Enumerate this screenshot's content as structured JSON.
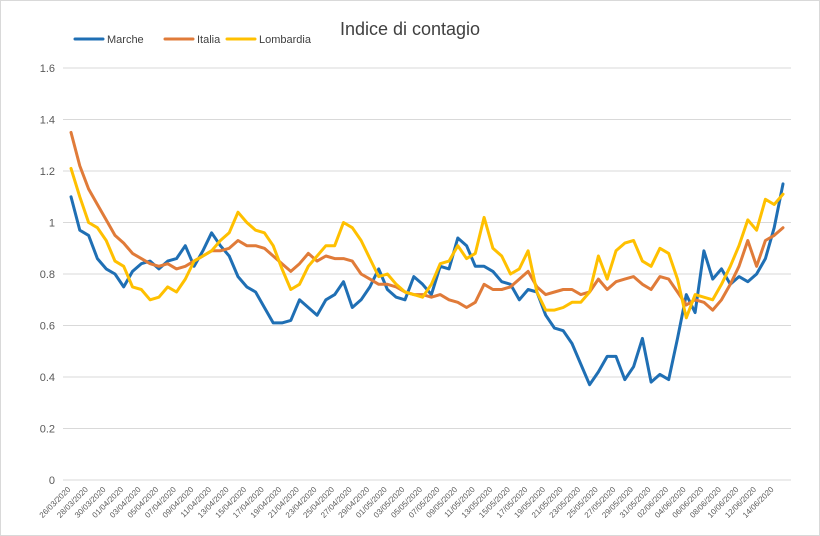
{
  "chart_data": {
    "type": "line",
    "title": "Indice di contagio",
    "xlabel": "",
    "ylabel": "",
    "ylim": [
      0,
      1.6
    ],
    "yticks": [
      "0",
      "0.2",
      "0.4",
      "0.6",
      "0.8",
      "1",
      "1.2",
      "1.4",
      "1.6"
    ],
    "grid": true,
    "legend_position": "top-left",
    "categories": [
      "26/03/2020",
      "27/03/2020",
      "28/03/2020",
      "29/03/2020",
      "30/03/2020",
      "31/03/2020",
      "01/04/2020",
      "02/04/2020",
      "03/04/2020",
      "04/04/2020",
      "05/04/2020",
      "06/04/2020",
      "07/04/2020",
      "08/04/2020",
      "09/04/2020",
      "10/04/2020",
      "11/04/2020",
      "12/04/2020",
      "13/04/2020",
      "14/04/2020",
      "15/04/2020",
      "16/04/2020",
      "17/04/2020",
      "18/04/2020",
      "19/04/2020",
      "20/04/2020",
      "21/04/2020",
      "22/04/2020",
      "23/04/2020",
      "24/04/2020",
      "25/04/2020",
      "26/04/2020",
      "27/04/2020",
      "28/04/2020",
      "29/04/2020",
      "30/04/2020",
      "01/05/2020",
      "02/05/2020",
      "03/05/2020",
      "04/05/2020",
      "05/05/2020",
      "06/05/2020",
      "07/05/2020",
      "08/05/2020",
      "09/05/2020",
      "10/05/2020",
      "11/05/2020",
      "12/05/2020",
      "13/05/2020",
      "14/05/2020",
      "15/05/2020",
      "16/05/2020",
      "17/05/2020",
      "18/05/2020",
      "19/05/2020",
      "20/05/2020",
      "21/05/2020",
      "22/05/2020",
      "23/05/2020",
      "24/05/2020",
      "25/05/2020",
      "26/05/2020",
      "27/05/2020",
      "28/05/2020",
      "29/05/2020",
      "30/05/2020",
      "31/05/2020",
      "01/06/2020",
      "02/06/2020",
      "03/06/2020",
      "04/06/2020",
      "05/06/2020",
      "06/06/2020",
      "07/06/2020",
      "08/06/2020",
      "09/06/2020",
      "10/06/2020",
      "11/06/2020",
      "12/06/2020",
      "13/06/2020",
      "14/06/2020",
      "15/06/2020"
    ],
    "xtick_labels": [
      "26/03/2020",
      "28/03/2020",
      "30/03/2020",
      "01/04/2020",
      "03/04/2020",
      "05/04/2020",
      "07/04/2020",
      "09/04/2020",
      "11/04/2020",
      "13/04/2020",
      "15/04/2020",
      "17/04/2020",
      "19/04/2020",
      "21/04/2020",
      "23/04/2020",
      "25/04/2020",
      "27/04/2020",
      "29/04/2020",
      "01/05/2020",
      "03/05/2020",
      "05/05/2020",
      "07/05/2020",
      "09/05/2020",
      "11/05/2020",
      "13/05/2020",
      "15/05/2020",
      "17/05/2020",
      "19/05/2020",
      "21/05/2020",
      "23/05/2020",
      "25/05/2020",
      "27/05/2020",
      "29/05/2020",
      "31/05/2020",
      "02/06/2020",
      "04/06/2020",
      "06/06/2020",
      "08/06/2020",
      "10/06/2020",
      "12/06/2020",
      "14/06/2020"
    ],
    "series": [
      {
        "name": "Marche",
        "color": "#1f6fb4",
        "values": [
          1.1,
          0.97,
          0.95,
          0.86,
          0.82,
          0.8,
          0.75,
          0.81,
          0.84,
          0.85,
          0.82,
          0.85,
          0.86,
          0.91,
          0.83,
          0.89,
          0.96,
          0.91,
          0.87,
          0.79,
          0.75,
          0.73,
          0.67,
          0.61,
          0.61,
          0.62,
          0.7,
          0.67,
          0.64,
          0.7,
          0.72,
          0.77,
          0.67,
          0.7,
          0.75,
          0.82,
          0.74,
          0.71,
          0.7,
          0.79,
          0.76,
          0.72,
          0.83,
          0.82,
          0.94,
          0.91,
          0.83,
          0.83,
          0.81,
          0.77,
          0.76,
          0.7,
          0.74,
          0.73,
          0.64,
          0.59,
          0.58,
          0.53,
          0.45,
          0.37,
          0.42,
          0.48,
          0.48,
          0.39,
          0.44,
          0.55,
          0.38,
          0.41,
          0.39,
          0.55,
          0.72,
          0.65,
          0.89,
          0.78,
          0.82,
          0.76,
          0.79,
          0.77,
          0.8,
          0.86,
          0.98,
          1.15
        ]
      },
      {
        "name": "Italia",
        "color": "#e07b39",
        "values": [
          1.35,
          1.22,
          1.13,
          1.07,
          1.01,
          0.95,
          0.92,
          0.88,
          0.86,
          0.84,
          0.83,
          0.84,
          0.82,
          0.83,
          0.85,
          0.87,
          0.89,
          0.89,
          0.9,
          0.93,
          0.91,
          0.91,
          0.9,
          0.87,
          0.84,
          0.81,
          0.84,
          0.88,
          0.85,
          0.87,
          0.86,
          0.86,
          0.85,
          0.8,
          0.78,
          0.76,
          0.76,
          0.75,
          0.73,
          0.72,
          0.72,
          0.71,
          0.72,
          0.7,
          0.69,
          0.67,
          0.69,
          0.76,
          0.74,
          0.74,
          0.75,
          0.78,
          0.81,
          0.75,
          0.72,
          0.73,
          0.74,
          0.74,
          0.72,
          0.73,
          0.78,
          0.74,
          0.77,
          0.78,
          0.79,
          0.76,
          0.74,
          0.79,
          0.78,
          0.73,
          0.68,
          0.7,
          0.69,
          0.66,
          0.7,
          0.76,
          0.83,
          0.93,
          0.83,
          0.93,
          0.95,
          0.98
        ]
      },
      {
        "name": "Lombardia",
        "color": "#ffc000",
        "values": [
          1.21,
          1.1,
          1.0,
          0.98,
          0.93,
          0.85,
          0.83,
          0.75,
          0.74,
          0.7,
          0.71,
          0.75,
          0.73,
          0.78,
          0.85,
          0.87,
          0.89,
          0.93,
          0.96,
          1.04,
          1.0,
          0.97,
          0.96,
          0.91,
          0.82,
          0.74,
          0.76,
          0.83,
          0.87,
          0.91,
          0.91,
          1.0,
          0.98,
          0.93,
          0.86,
          0.79,
          0.8,
          0.76,
          0.73,
          0.72,
          0.71,
          0.76,
          0.84,
          0.85,
          0.91,
          0.86,
          0.88,
          1.02,
          0.9,
          0.87,
          0.8,
          0.82,
          0.89,
          0.73,
          0.66,
          0.66,
          0.67,
          0.69,
          0.69,
          0.73,
          0.87,
          0.78,
          0.89,
          0.92,
          0.93,
          0.85,
          0.83,
          0.9,
          0.88,
          0.78,
          0.63,
          0.72,
          0.71,
          0.7,
          0.76,
          0.83,
          0.91,
          1.01,
          0.97,
          1.09,
          1.07,
          1.11
        ]
      }
    ]
  }
}
